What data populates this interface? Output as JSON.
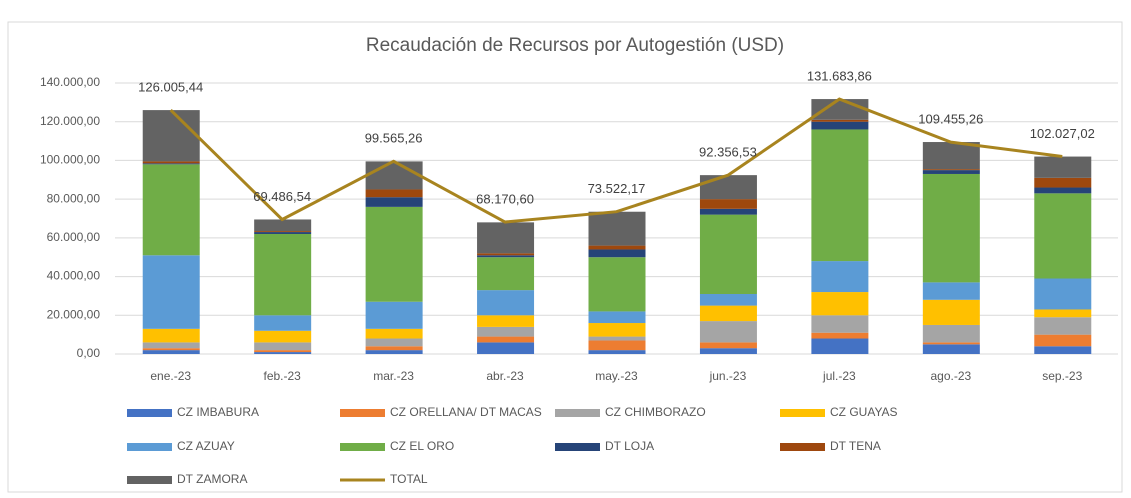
{
  "chart_data": {
    "type": "stacked_bar_line",
    "title": "Recaudación de Recursos por Autogestión (USD)",
    "categories": [
      "ene.-23",
      "feb.-23",
      "mar.-23",
      "abr.-23",
      "may.-23",
      "jun.-23",
      "jul.-23",
      "ago.-23",
      "sep.-23"
    ],
    "ylim": [
      0,
      140000
    ],
    "yticks": [
      {
        "value": 0,
        "label": "0,00"
      },
      {
        "value": 20000,
        "label": "20.000,00"
      },
      {
        "value": 40000,
        "label": "40.000,00"
      },
      {
        "value": 60000,
        "label": "60.000,00"
      },
      {
        "value": 80000,
        "label": "80.000,00"
      },
      {
        "value": 100000,
        "label": "100.000,00"
      },
      {
        "value": 120000,
        "label": "120.000,00"
      },
      {
        "value": 140000,
        "label": "140.000,00"
      }
    ],
    "grid": true,
    "series": [
      {
        "name": "CZ IMBABURA",
        "color": "#4472c4",
        "values": [
          2000,
          1000,
          2000,
          6000,
          2000,
          3000,
          8000,
          5000,
          4000
        ]
      },
      {
        "name": "CZ ORELLANA/ DT MACAS",
        "color": "#ed7d31",
        "values": [
          1000,
          1000,
          2000,
          3000,
          5000,
          3000,
          3000,
          1000,
          6000
        ]
      },
      {
        "name": "CZ CHIMBORAZO",
        "color": "#a5a5a5",
        "values": [
          3000,
          4000,
          4000,
          5000,
          2000,
          11000,
          9000,
          9000,
          9000
        ]
      },
      {
        "name": "CZ GUAYAS",
        "color": "#ffc000",
        "values": [
          7000,
          6000,
          5000,
          6000,
          7000,
          8000,
          12000,
          13000,
          4000
        ]
      },
      {
        "name": "CZ AZUAY",
        "color": "#5b9bd5",
        "values": [
          38000,
          8000,
          14000,
          13000,
          6000,
          6000,
          16000,
          9000,
          16000
        ]
      },
      {
        "name": "CZ EL ORO",
        "color": "#70ad47",
        "values": [
          47000,
          42000,
          49000,
          17000,
          28000,
          41000,
          68000,
          56000,
          44000
        ]
      },
      {
        "name": "DT LOJA",
        "color": "#264478",
        "values": [
          500,
          1000,
          5000,
          1000,
          4000,
          3000,
          4000,
          2000,
          3000
        ]
      },
      {
        "name": "DT TENA",
        "color": "#9e480e",
        "values": [
          1000,
          500,
          4000,
          1000,
          2000,
          5000,
          1000,
          500,
          5000
        ]
      },
      {
        "name": "DT ZAMORA",
        "color": "#636363",
        "values": [
          26500,
          6000,
          14500,
          16000,
          17500,
          12400,
          10700,
          14000,
          11000
        ]
      },
      {
        "name": "TOTAL",
        "color": "#a8841f",
        "values": [
          126005.44,
          69486.54,
          99565.26,
          68170.6,
          73522.17,
          92356.53,
          131683.86,
          109455.26,
          102027.02
        ],
        "value_labels": [
          "126.005,44",
          "69.486,54",
          "99.565,26",
          "68.170,60",
          "73.522,17",
          "92.356,53",
          "131.683,86",
          "109.455,26",
          "102.027,02"
        ]
      }
    ]
  }
}
